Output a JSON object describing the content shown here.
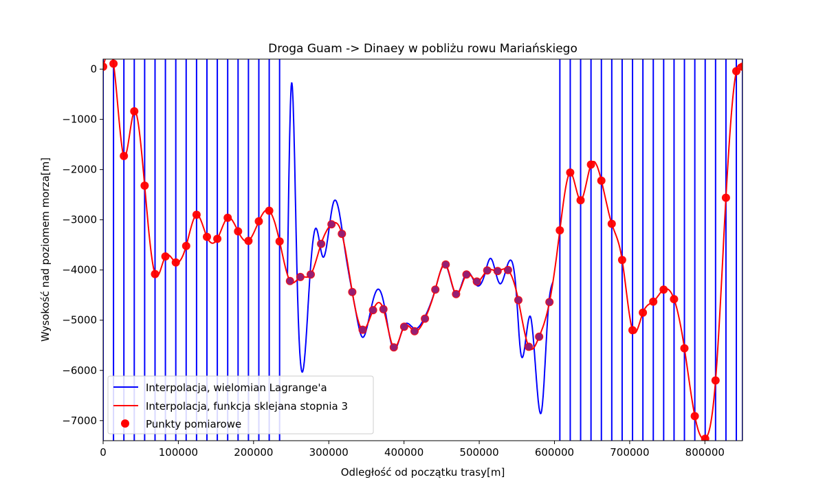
{
  "chart_data": {
    "type": "line",
    "title": "Droga  Guam -> Dinaey  w pobliżu rowu Mariańskiego",
    "xlabel": "Odległość od początku trasy[m]",
    "ylabel": "Wysokość nad poziomem morza[m]",
    "xlim": [
      0,
      850000
    ],
    "ylim": [
      -7400,
      200
    ],
    "x_ticks": [
      0,
      100000,
      200000,
      300000,
      400000,
      500000,
      600000,
      700000,
      800000
    ],
    "y_ticks": [
      0,
      -1000,
      -2000,
      -3000,
      -4000,
      -5000,
      -6000,
      -7000
    ],
    "x_tick_labels": [
      "0",
      "100000",
      "200000",
      "300000",
      "400000",
      "500000",
      "600000",
      "700000",
      "800000"
    ],
    "y_tick_labels": [
      "0",
      "−1000",
      "−2000",
      "−3000",
      "−4000",
      "−5000",
      "−6000",
      "−7000"
    ],
    "grid": false,
    "legend_position": "lower-left",
    "legend": [
      {
        "label": "Interpolacja, wielomian Lagrange'a",
        "color": "#0000ff",
        "marker": "line"
      },
      {
        "label": "Interpolacja, funkcja sklejana stopnia 3",
        "color": "#ff0000",
        "marker": "line"
      },
      {
        "label": "Punkty pomiarowe",
        "color": "#ff0000",
        "marker": "dot"
      }
    ],
    "points": {
      "name": "Punkty pomiarowe",
      "x": [
        0,
        13800,
        27600,
        41400,
        55200,
        69000,
        82800,
        96600,
        110400,
        124200,
        138000,
        151800,
        165600,
        179400,
        193200,
        207000,
        220800,
        234600,
        248400,
        262200,
        276000,
        289800,
        303600,
        317400,
        331200,
        345000,
        358800,
        372600,
        386400,
        400200,
        414000,
        427800,
        441600,
        455400,
        469200,
        483000,
        496800,
        510600,
        524400,
        538200,
        552000,
        565800,
        579600,
        593400,
        607200,
        621000,
        634800,
        648600,
        662400,
        676200,
        690000,
        703800,
        717600,
        731400,
        745200,
        759000,
        772800,
        786600,
        800400,
        814200,
        828000,
        841800,
        850000
      ],
      "y": [
        50,
        110,
        -1730,
        -840,
        -2320,
        -4080,
        -3730,
        -3850,
        -3520,
        -2900,
        -3340,
        -3380,
        -2960,
        -3230,
        -3420,
        -3030,
        -2820,
        -3430,
        -4220,
        -4140,
        -4090,
        -3480,
        -3090,
        -3280,
        -4440,
        -5190,
        -4800,
        -4780,
        -5540,
        -5130,
        -5220,
        -4970,
        -4390,
        -3890,
        -4480,
        -4090,
        -4230,
        -4010,
        -4020,
        -4000,
        -4600,
        -5530,
        -5330,
        -4640,
        -3210,
        -2060,
        -2610,
        -1900,
        -2220,
        -3080,
        -3800,
        -5200,
        -4850,
        -4630,
        -4390,
        -4580,
        -5560,
        -6910,
        -7360,
        -6200,
        -2560,
        -40,
        50
      ]
    },
    "series": [
      {
        "name": "Interpolacja, wielomian Lagrange'a",
        "color": "#0000ff",
        "x": [],
        "y": [],
        "note_segments": [
          {
            "x": 250000,
            "y": -300
          },
          {
            "x": 265000,
            "y": -6100
          },
          {
            "x": 283000,
            "y": -2800
          },
          {
            "x": 292000,
            "y": -3850
          },
          {
            "x": 306000,
            "y": -2700
          },
          {
            "x": 345000,
            "y": -5300
          },
          {
            "x": 365000,
            "y": -4500
          },
          {
            "x": 500000,
            "y": -4300
          },
          {
            "x": 515000,
            "y": -3750
          },
          {
            "x": 528000,
            "y": -4340
          },
          {
            "x": 542000,
            "y": -3700
          },
          {
            "x": 555000,
            "y": -5900
          },
          {
            "x": 568000,
            "y": -4400
          },
          {
            "x": 583000,
            "y": -7130
          }
        ]
      },
      {
        "name": "Interpolacja, funkcja sklejana stopnia 3",
        "color": "#ff0000"
      }
    ]
  }
}
